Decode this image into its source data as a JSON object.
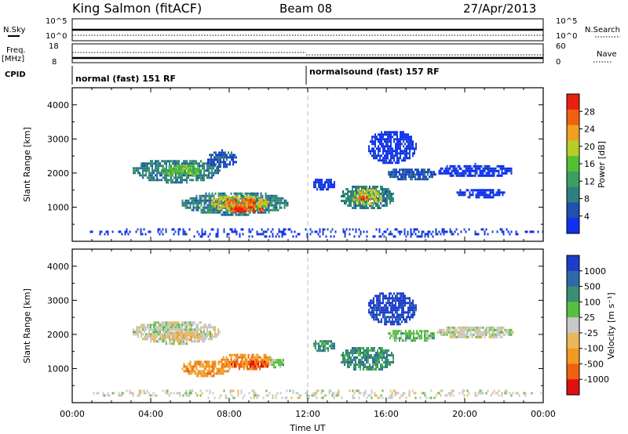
{
  "header": {
    "station": "King Salmon (fitACF)",
    "beam": "Beam 08",
    "date": "27/Apr/2013"
  },
  "status_panels": {
    "nsky_label": "N.Sky",
    "nsky_ticks": [
      "10^5",
      "10^0"
    ],
    "nsearch_label": "N.Search",
    "nsearch_ticks": [
      "10^5",
      "10^0"
    ],
    "freq_label": "Freq.",
    "freq_unit": "[MHz]",
    "freq_ticks": [
      "18",
      "8"
    ],
    "nave_label": "Nave",
    "nave_ticks": [
      "60",
      "0"
    ],
    "cpid_label": "CPID",
    "cpid_modes": [
      {
        "name": "normal (fast) 151 RF",
        "start_hour": 0
      },
      {
        "name": "normalsound (fast) 157 RF",
        "start_hour": 12
      }
    ]
  },
  "chart_data": [
    {
      "type": "heatmap",
      "id": "power",
      "ylabel": "Slant Range [km]",
      "xlabel": "",
      "x_range_hours": [
        0,
        24
      ],
      "ylim": [
        0,
        4500
      ],
      "yticks": [
        1000,
        2000,
        3000,
        4000
      ],
      "colorbar": {
        "label": "Power [dB]",
        "ticks": [
          "4",
          "8",
          "12",
          "16",
          "20",
          "24",
          "28"
        ],
        "colors": [
          "#1030f0",
          "#2050b0",
          "#2f7f7f",
          "#3aa060",
          "#52c032",
          "#b8cc2a",
          "#f0a020",
          "#f06010",
          "#e82010"
        ]
      },
      "regions": [
        {
          "t0": 3.0,
          "t1": 7.5,
          "r0": 1750,
          "r1": 2450,
          "level": 2
        },
        {
          "t0": 4.5,
          "t1": 6.5,
          "r0": 1900,
          "r1": 2300,
          "level": 4
        },
        {
          "t0": 6.8,
          "t1": 8.4,
          "r0": 2200,
          "r1": 2700,
          "level": 1
        },
        {
          "t0": 5.5,
          "t1": 11.0,
          "r0": 800,
          "r1": 1500,
          "level": 2
        },
        {
          "t0": 7.0,
          "t1": 10.0,
          "r0": 900,
          "r1": 1400,
          "level": 5
        },
        {
          "t0": 7.6,
          "t1": 9.4,
          "r0": 950,
          "r1": 1300,
          "level": 7
        },
        {
          "t0": 8.0,
          "t1": 9.8,
          "r0": 850,
          "r1": 1050,
          "level": 8
        },
        {
          "t0": 13.6,
          "t1": 16.4,
          "r0": 950,
          "r1": 1700,
          "level": 2
        },
        {
          "t0": 14.2,
          "t1": 15.8,
          "r0": 1100,
          "r1": 1600,
          "level": 5
        },
        {
          "t0": 14.5,
          "t1": 15.2,
          "r0": 1200,
          "r1": 1400,
          "level": 7
        },
        {
          "t0": 12.2,
          "t1": 13.4,
          "r0": 1500,
          "r1": 1900,
          "level": 0
        },
        {
          "t0": 15.0,
          "t1": 17.5,
          "r0": 2300,
          "r1": 3300,
          "level": 0
        },
        {
          "t0": 16.0,
          "t1": 18.5,
          "r0": 1800,
          "r1": 2200,
          "level": 1
        },
        {
          "t0": 18.5,
          "t1": 22.5,
          "r0": 1900,
          "r1": 2300,
          "level": 0
        },
        {
          "t0": 19.5,
          "t1": 22.0,
          "r0": 1300,
          "r1": 1600,
          "level": 0
        },
        {
          "t0": 0.5,
          "t1": 24.0,
          "r0": 150,
          "r1": 450,
          "level": 0
        }
      ]
    },
    {
      "type": "heatmap",
      "id": "velocity",
      "ylabel": "Slant Range [km]",
      "xlabel": "Time UT",
      "x_range_hours": [
        0,
        24
      ],
      "xticks": [
        "00:00",
        "04:00",
        "08:00",
        "12:00",
        "16:00",
        "20:00",
        "00:00"
      ],
      "ylim": [
        0,
        4500
      ],
      "yticks": [
        1000,
        2000,
        3000,
        4000
      ],
      "colorbar": {
        "label": "Velocity [m s⁻¹]",
        "ticks": [
          "1000",
          "500",
          "100",
          "25",
          "-25",
          "-100",
          "-500",
          "-1000"
        ],
        "colors": [
          "#1e3ccc",
          "#2f6aa8",
          "#3a8e72",
          "#58c040",
          "#c8c8c8",
          "#e8b85a",
          "#f09a20",
          "#f06010",
          "#e01010"
        ]
      },
      "regions": [
        {
          "t0": 3.0,
          "t1": 7.5,
          "r0": 1750,
          "r1": 2450,
          "level": 4
        },
        {
          "t0": 4.5,
          "t1": 6.5,
          "r0": 1850,
          "r1": 2150,
          "level": 5
        },
        {
          "t0": 5.5,
          "t1": 8.0,
          "r0": 800,
          "r1": 1300,
          "level": 6
        },
        {
          "t0": 7.5,
          "t1": 10.2,
          "r0": 1050,
          "r1": 1500,
          "level": 6
        },
        {
          "t0": 8.0,
          "t1": 10.0,
          "r0": 1000,
          "r1": 1300,
          "level": 7
        },
        {
          "t0": 10.0,
          "t1": 10.8,
          "r0": 1050,
          "r1": 1350,
          "level": 3
        },
        {
          "t0": 13.6,
          "t1": 16.4,
          "r0": 950,
          "r1": 1700,
          "level": 2
        },
        {
          "t0": 12.2,
          "t1": 13.4,
          "r0": 1500,
          "r1": 1900,
          "level": 2
        },
        {
          "t0": 15.0,
          "t1": 17.5,
          "r0": 2300,
          "r1": 3300,
          "level": 0
        },
        {
          "t0": 16.0,
          "t1": 18.5,
          "r0": 1800,
          "r1": 2200,
          "level": 3
        },
        {
          "t0": 18.5,
          "t1": 22.5,
          "r0": 1900,
          "r1": 2300,
          "level": 4
        },
        {
          "t0": 0.5,
          "t1": 24.0,
          "r0": 150,
          "r1": 450,
          "level": 4
        }
      ]
    }
  ]
}
